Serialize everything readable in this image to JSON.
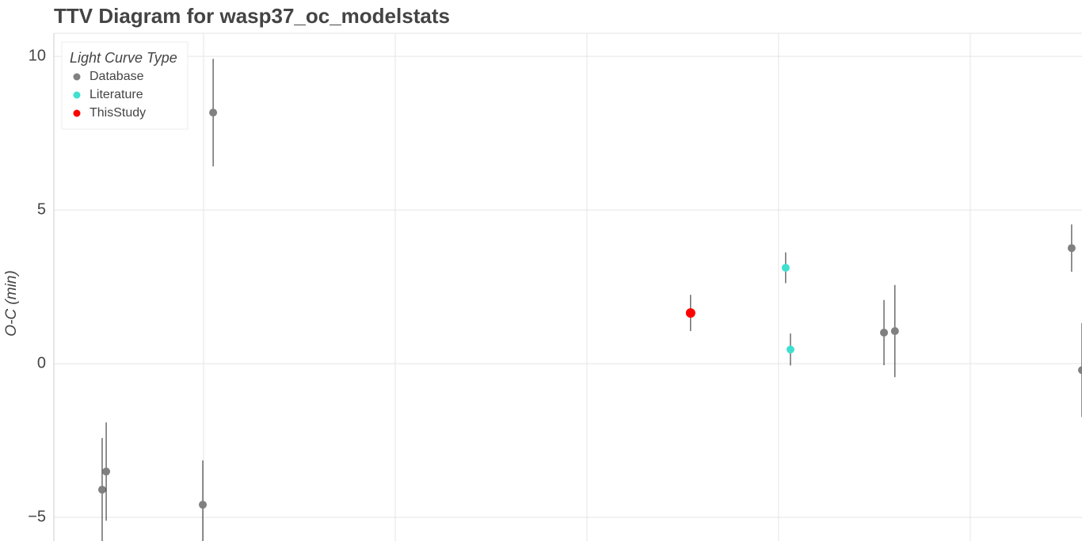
{
  "chart_data": {
    "type": "scatter",
    "title": "TTV Diagram for wasp37_oc_modelstats",
    "y_label": "O-C (min)",
    "legend_title": "Light Curve Type",
    "legend_position": "top-left",
    "grid": true,
    "xlim": [
      0.219,
      5.583
    ],
    "xgrid": [
      1,
      2,
      3,
      4,
      5
    ],
    "ylim": [
      -5.77,
      10.75
    ],
    "yticks": [
      {
        "value": -5,
        "label": "−5"
      },
      0,
      5,
      10
    ],
    "series": [
      {
        "name": "Database",
        "color": "#808080",
        "x": [
          0.471,
          0.492,
          0.996,
          1.05,
          4.55,
          4.607,
          5.529,
          5.583
        ],
        "values": [
          -4.1,
          -3.51,
          -4.59,
          8.17,
          1.01,
          1.06,
          3.76,
          -0.21
        ],
        "errors": [
          1.68,
          1.6,
          1.44,
          1.75,
          1.06,
          1.5,
          0.77,
          1.53
        ]
      },
      {
        "name": "Literature",
        "color": "#40e0d0",
        "x": [
          4.037,
          4.062
        ],
        "values": [
          3.12,
          0.46
        ],
        "errors": [
          0.5,
          0.52
        ]
      },
      {
        "name": "ThisStudy",
        "color": "#ff0000",
        "x": [
          3.541
        ],
        "values": [
          1.65
        ],
        "errors": [
          0.59
        ]
      }
    ]
  }
}
